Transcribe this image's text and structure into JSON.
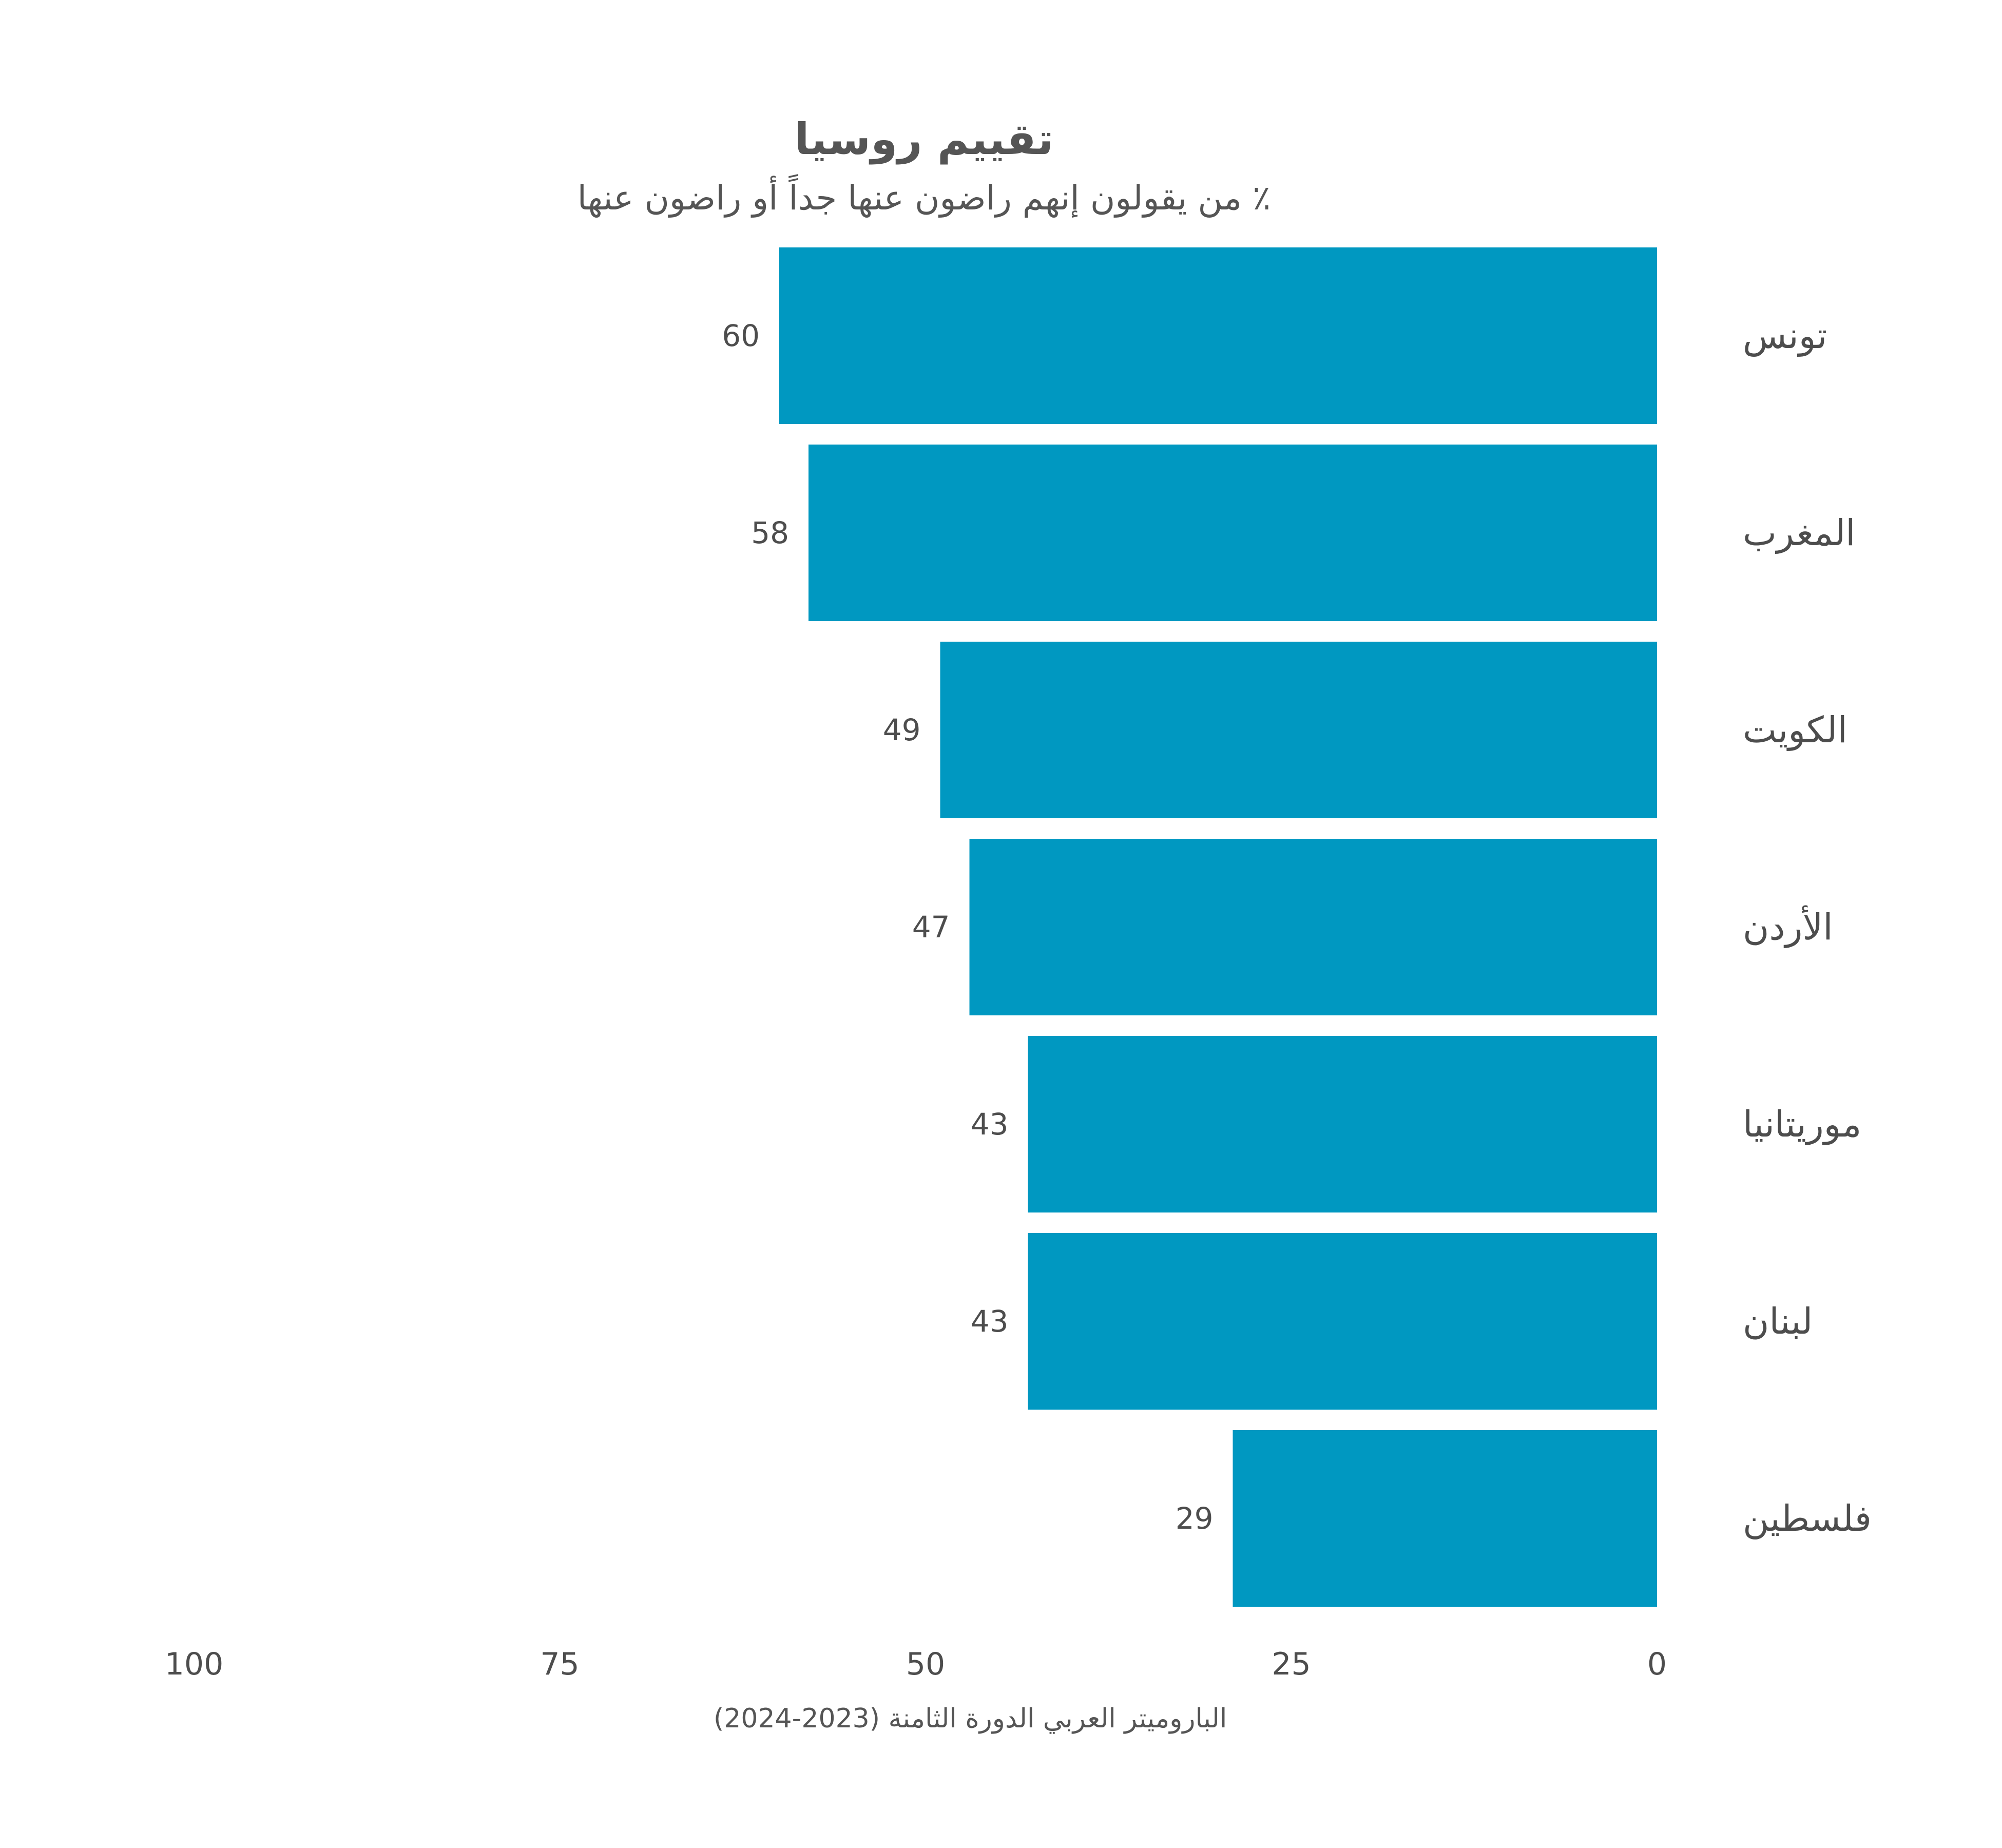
{
  "chart_data": {
    "type": "bar",
    "orientation": "horizontal",
    "x_direction": "reversed",
    "title": "تقييم روسيا",
    "subtitle": "٪ من يقولون إنهم راضون عنها جداً أو راضون عنها",
    "categories": [
      "تونس",
      "المغرب",
      "الكويت",
      "الأردن",
      "موريتانيا",
      "لبنان",
      "فلسطين"
    ],
    "values": [
      60,
      58,
      49,
      47,
      43,
      43,
      29
    ],
    "xlim": [
      0,
      100
    ],
    "x_ticks": [
      100,
      75,
      50,
      25,
      0
    ],
    "grid": false,
    "legend": false,
    "bar_color": "#0098C1",
    "source": "الباروميتر العربي الدورة الثامنة (2023-2024)"
  }
}
